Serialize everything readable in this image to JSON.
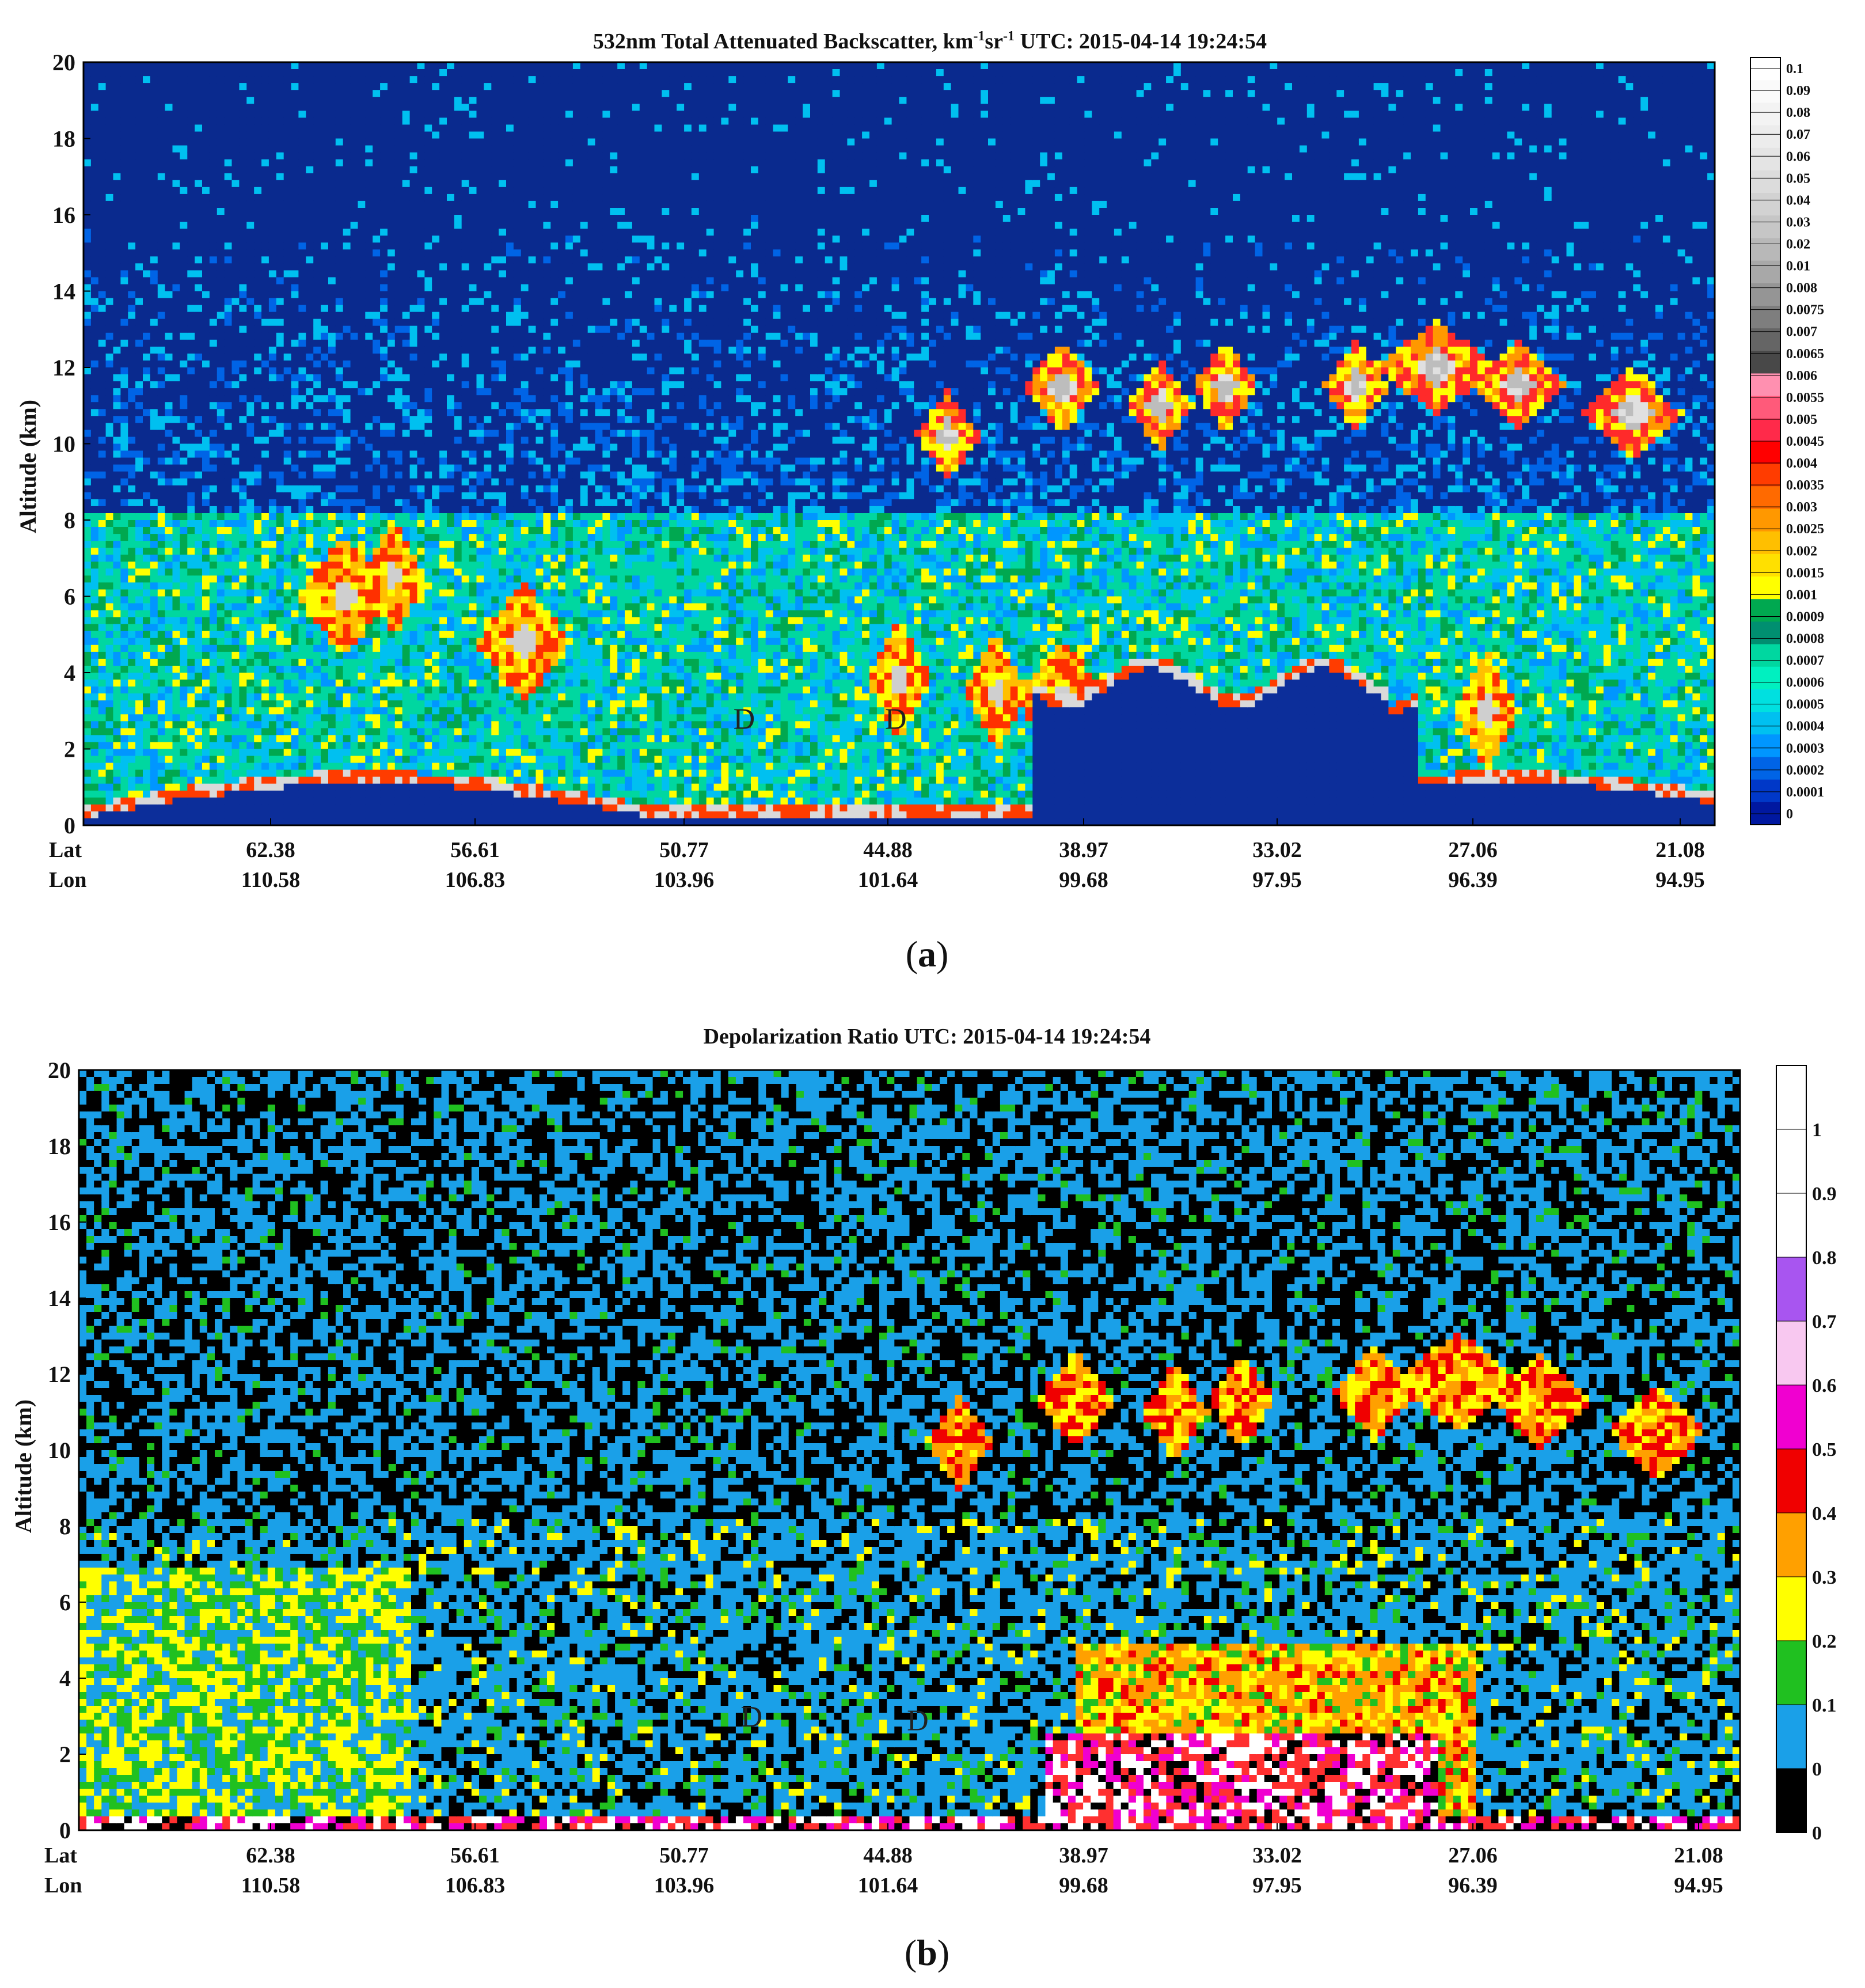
{
  "chart_data": [
    {
      "panel": "a",
      "caption_letter": "a",
      "type": "heatmap",
      "title": "532nm Total Attenuated Backscatter, km-1sr-1  UTC: 2015-04-14 19:24:54",
      "title_parts": {
        "main": "532nm Total Attenuated Backscatter, km",
        "sup1": "-1",
        "mid": "sr",
        "sup2": "-1",
        "utc": "  UTC: 2015-04-14 19:24:54"
      },
      "ylabel": "Altitude (km)",
      "ylim": [
        0,
        20
      ],
      "yticks": [
        "0",
        "2",
        "4",
        "6",
        "8",
        "10",
        "12",
        "14",
        "16",
        "18",
        "20"
      ],
      "x_row_labels": [
        "Lat",
        "Lon"
      ],
      "lat_ticks": [
        "62.38",
        "56.61",
        "50.77",
        "44.88",
        "38.97",
        "33.02",
        "27.06",
        "21.08"
      ],
      "lon_ticks": [
        "110.58",
        "106.83",
        "103.96",
        "101.64",
        "99.68",
        "97.95",
        "96.39",
        "94.95"
      ],
      "annotations": [
        "D",
        "D"
      ],
      "colorbar": {
        "ticks": [
          "0.1",
          "0.09",
          "0.08",
          "0.07",
          "0.06",
          "0.05",
          "0.04",
          "0.03",
          "0.02",
          "0.01",
          "0.008",
          "0.0075",
          "0.007",
          "0.0065",
          "0.006",
          "0.0055",
          "0.005",
          "0.0045",
          "0.004",
          "0.0035",
          "0.003",
          "0.0025",
          "0.002",
          "0.0015",
          "0.001",
          "0.0009",
          "0.0008",
          "0.0007",
          "0.0006",
          "0.0005",
          "0.0004",
          "0.0003",
          "0.0002",
          "0.0001",
          "0"
        ],
        "colors": [
          "#ffffff",
          "#fafafa",
          "#f3f3f3",
          "#ececec",
          "#e4e4e4",
          "#dcdcdc",
          "#d2d2d2",
          "#c6c6c6",
          "#b8b8b8",
          "#a8a8a8",
          "#959595",
          "#7e7e7e",
          "#656565",
          "#484848",
          "#ff90b0",
          "#ff5a7a",
          "#ff2a4a",
          "#ff0000",
          "#ff3c00",
          "#ff6a00",
          "#ff9800",
          "#ffbf00",
          "#ffe000",
          "#ffff00",
          "#00a850",
          "#008f70",
          "#00d7a0",
          "#00f0c0",
          "#00e0e0",
          "#00c0f0",
          "#0096ff",
          "#0064e6",
          "#0038c8",
          "#0018a0"
        ]
      }
    },
    {
      "panel": "b",
      "caption_letter": "b",
      "type": "heatmap",
      "title": "Depolarization Ratio  UTC: 2015-04-14 19:24:54",
      "ylabel": "Altitude (km)",
      "ylim": [
        0,
        20
      ],
      "yticks": [
        "0",
        "2",
        "4",
        "6",
        "8",
        "10",
        "12",
        "14",
        "16",
        "18",
        "20"
      ],
      "x_row_labels": [
        "Lat",
        "Lon"
      ],
      "lat_ticks": [
        "62.38",
        "56.61",
        "50.77",
        "44.88",
        "38.97",
        "33.02",
        "27.06",
        "21.08"
      ],
      "lon_ticks": [
        "110.58",
        "106.83",
        "103.96",
        "101.64",
        "99.68",
        "97.95",
        "96.39",
        "94.95"
      ],
      "annotations": [
        "D",
        "D"
      ],
      "colorbar": {
        "ticks": [
          "1",
          "0.9",
          "0.8",
          "0.7",
          "0.6",
          "0.5",
          "0.4",
          "0.3",
          "0.2",
          "0.1",
          "0",
          "0"
        ],
        "colors": [
          "#ffffff",
          "#ffffff",
          "#ffffff",
          "#a855f0",
          "#f8c8f0",
          "#f000d0",
          "#f00000",
          "#ffa000",
          "#ffff00",
          "#20c020",
          "#1aa0e8",
          "#000000"
        ]
      }
    }
  ]
}
